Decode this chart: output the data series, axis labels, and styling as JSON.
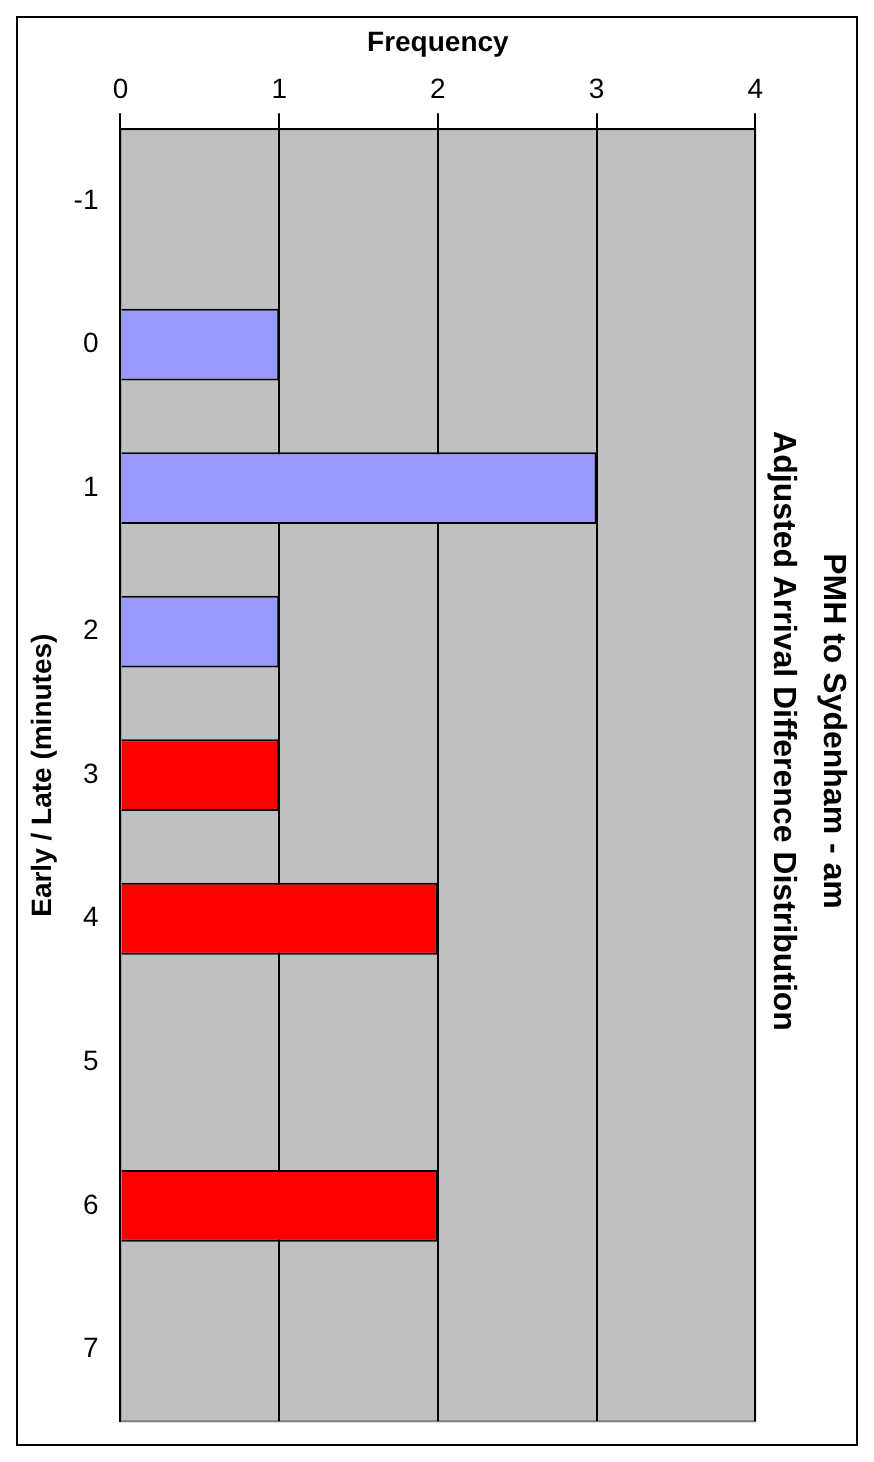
{
  "chart_data": {
    "type": "bar",
    "orientation": "horizontal",
    "title": "PMH to Sydenham - am",
    "subtitle": "Adjusted Arrival Difference Distribution",
    "xlabel": "Frequency",
    "ylabel": "Early / Late (minutes)",
    "categories": [
      "-1",
      "0",
      "1",
      "2",
      "3",
      "4",
      "5",
      "6",
      "7"
    ],
    "values": [
      0,
      1,
      3,
      1,
      1,
      2,
      0,
      2,
      0
    ],
    "colors": [
      "#9999ff",
      "#9999ff",
      "#9999ff",
      "#9999ff",
      "#ff0000",
      "#ff0000",
      "#ff0000",
      "#ff0000",
      "#ff0000"
    ],
    "xlim": [
      0,
      4
    ],
    "xticks": [
      0,
      1,
      2,
      3,
      4
    ],
    "grid": "x",
    "legend": false
  }
}
